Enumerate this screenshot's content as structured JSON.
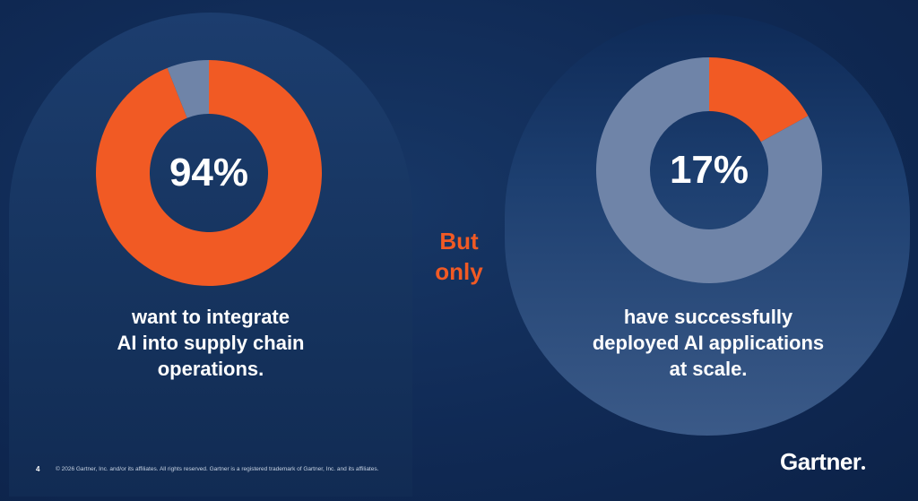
{
  "colors": {
    "accent": "#f15a24",
    "muted": "#6f84a8",
    "hole": "#0f2a52"
  },
  "chart_data": [
    {
      "type": "pie",
      "categories": [
        "",
        ""
      ],
      "values": [
        94,
        6
      ],
      "center_label": "94%",
      "caption": [
        "want to integrate",
        "AI into supply chain",
        "operations."
      ],
      "title": ""
    },
    {
      "type": "pie",
      "categories": [
        "",
        ""
      ],
      "values": [
        17,
        83
      ],
      "center_label": "17%",
      "caption": [
        "have successfully",
        "deployed AI applications",
        "at scale."
      ],
      "title": ""
    }
  ],
  "connector": [
    "But",
    "only"
  ],
  "footer": {
    "page_number": "4",
    "copyright": "© 2026 Gartner, Inc. and/or its affiliates. All rights reserved. Gartner is a registered trademark of Gartner, Inc. and its affiliates."
  },
  "logo": "Gartner"
}
